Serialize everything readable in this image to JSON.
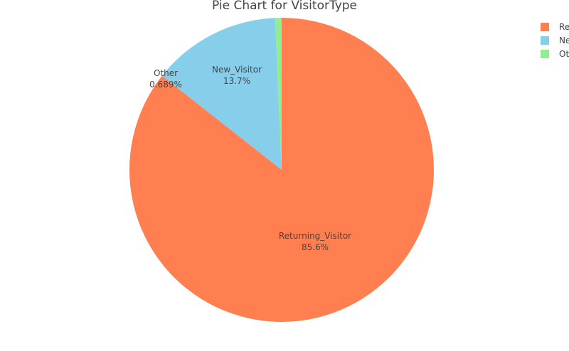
{
  "chart_data": {
    "type": "pie",
    "title": "Pie Chart for VisitorType",
    "categories": [
      "Returning_Visitor",
      "New_Visitor",
      "Other"
    ],
    "values": [
      85.6,
      13.7,
      0.689
    ],
    "percent_labels": [
      "85.6%",
      "13.7%",
      "0.689%"
    ],
    "colors": [
      "#FF7F50",
      "#87CEEB",
      "#90EE90"
    ],
    "legend": {
      "placement": "top-right",
      "entries": [
        "Returning_Visitor",
        "New_Visitor",
        "Other"
      ]
    },
    "sort": "descending",
    "direction": "clockwise",
    "start": "top"
  }
}
